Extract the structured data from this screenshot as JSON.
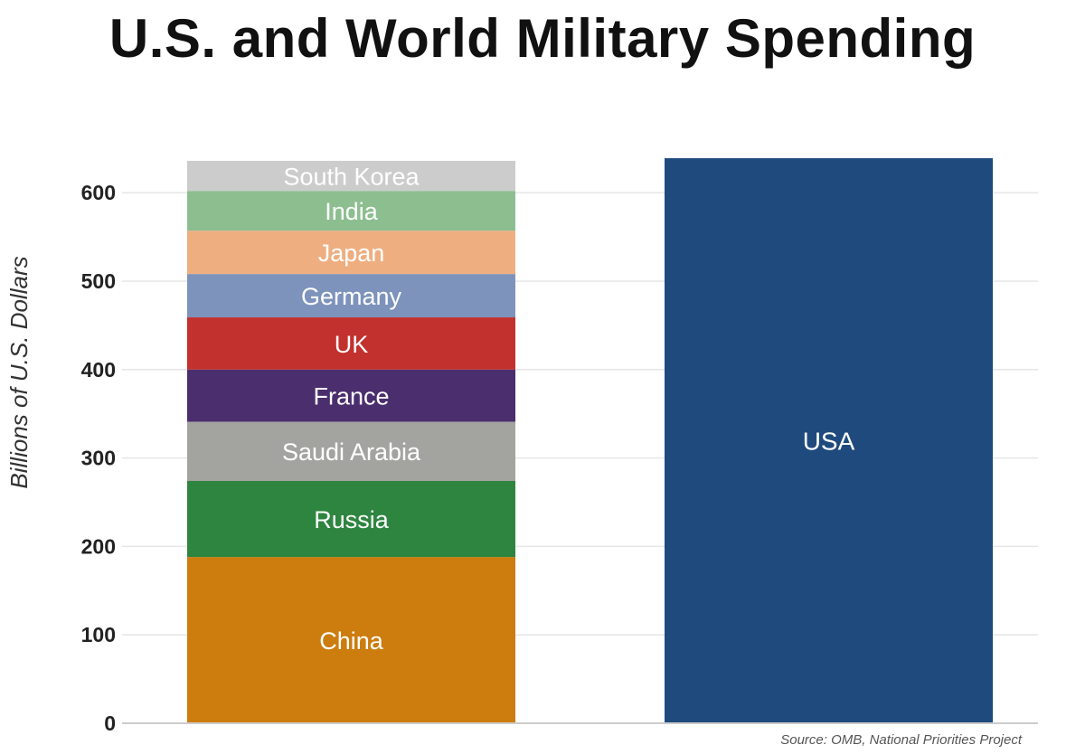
{
  "title": "U.S. and World Military Spending",
  "source": "Source: OMB, National Priorities Project",
  "chart_data": {
    "type": "bar",
    "stacked": true,
    "title": "U.S. and World Military Spending",
    "ylabel": "Billions of U.S. Dollars",
    "xlabel": "",
    "ylim": [
      0,
      640
    ],
    "yticks": [
      0,
      100,
      200,
      300,
      400,
      500,
      600
    ],
    "grid": true,
    "bars": [
      {
        "segments": [
          {
            "label": "China",
            "value": 188,
            "color": "#CC7D0E"
          },
          {
            "label": "Russia",
            "value": 86,
            "color": "#2E8540"
          },
          {
            "label": "Saudi Arabia",
            "value": 67,
            "color": "#A3A3A0"
          },
          {
            "label": "France",
            "value": 59,
            "color": "#4B2E6E"
          },
          {
            "label": "UK",
            "value": 59,
            "color": "#C2312D"
          },
          {
            "label": "Germany",
            "value": 49,
            "color": "#7D93BC"
          },
          {
            "label": "Japan",
            "value": 49,
            "color": "#EEAE80"
          },
          {
            "label": "India",
            "value": 45,
            "color": "#8DBE90"
          },
          {
            "label": "South Korea",
            "value": 34,
            "color": "#CCCCCC"
          }
        ]
      },
      {
        "segments": [
          {
            "label": "USA",
            "value": 639,
            "color": "#1F4A7E"
          }
        ]
      }
    ]
  }
}
